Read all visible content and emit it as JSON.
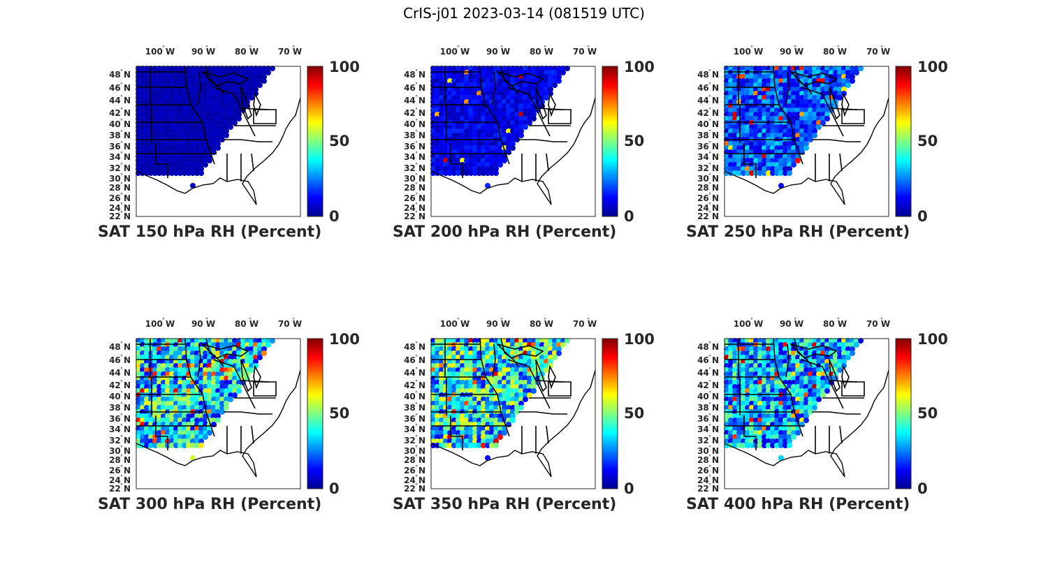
{
  "figure": {
    "title": "CrIS-j01 2023-03-14 (081519 UTC)"
  },
  "lon_ticks": [
    "100",
    "90",
    "80",
    "70"
  ],
  "lon_suffix": "W",
  "lat_ticks": [
    "48",
    "46",
    "44",
    "42",
    "40",
    "38",
    "36",
    "34",
    "32",
    "30",
    "28",
    "26",
    "24",
    "22"
  ],
  "lat_suffix": "N",
  "degree_symbol": "°",
  "colorbar": {
    "ticks": [
      "100",
      "50",
      "0"
    ],
    "range": [
      0,
      100
    ],
    "colormap": "jet",
    "colors": [
      "#00008f",
      "#0000ff",
      "#0080ff",
      "#00ffff",
      "#80ff80",
      "#ffff00",
      "#ff8000",
      "#ff0000",
      "#800000"
    ]
  },
  "chart_data": [
    {
      "type": "heatmap",
      "title": "SAT 150 hPa RH (Percent)",
      "level_hPa": 150,
      "variable": "RH",
      "units": "Percent",
      "xlim": [
        "100°W",
        "70°W"
      ],
      "ylim": [
        "22°N",
        "48°N"
      ],
      "clim": [
        0,
        100
      ],
      "typical_value": 3
    },
    {
      "type": "heatmap",
      "title": "SAT 200 hPa RH (Percent)",
      "level_hPa": 200,
      "variable": "RH",
      "units": "Percent",
      "xlim": [
        "100°W",
        "70°W"
      ],
      "ylim": [
        "22°N",
        "48°N"
      ],
      "clim": [
        0,
        100
      ],
      "typical_value": 10
    },
    {
      "type": "heatmap",
      "title": "SAT 250 hPa RH (Percent)",
      "level_hPa": 250,
      "variable": "RH",
      "units": "Percent",
      "xlim": [
        "100°W",
        "70°W"
      ],
      "ylim": [
        "22°N",
        "48°N"
      ],
      "clim": [
        0,
        100
      ],
      "typical_value": 20
    },
    {
      "type": "heatmap",
      "title": "SAT 300 hPa RH (Percent)",
      "level_hPa": 300,
      "variable": "RH",
      "units": "Percent",
      "xlim": [
        "100°W",
        "70°W"
      ],
      "ylim": [
        "22°N",
        "48°N"
      ],
      "clim": [
        0,
        100
      ],
      "typical_value": 35
    },
    {
      "type": "heatmap",
      "title": "SAT 350 hPa RH (Percent)",
      "level_hPa": 350,
      "variable": "RH",
      "units": "Percent",
      "xlim": [
        "100°W",
        "70°W"
      ],
      "ylim": [
        "22°N",
        "48°N"
      ],
      "clim": [
        0,
        100
      ],
      "typical_value": 38
    },
    {
      "type": "heatmap",
      "title": "SAT 400 hPa RH (Percent)",
      "level_hPa": 400,
      "variable": "RH",
      "units": "Percent",
      "xlim": [
        "100°W",
        "70°W"
      ],
      "ylim": [
        "22°N",
        "48°N"
      ],
      "clim": [
        0,
        100
      ],
      "typical_value": 30
    }
  ]
}
